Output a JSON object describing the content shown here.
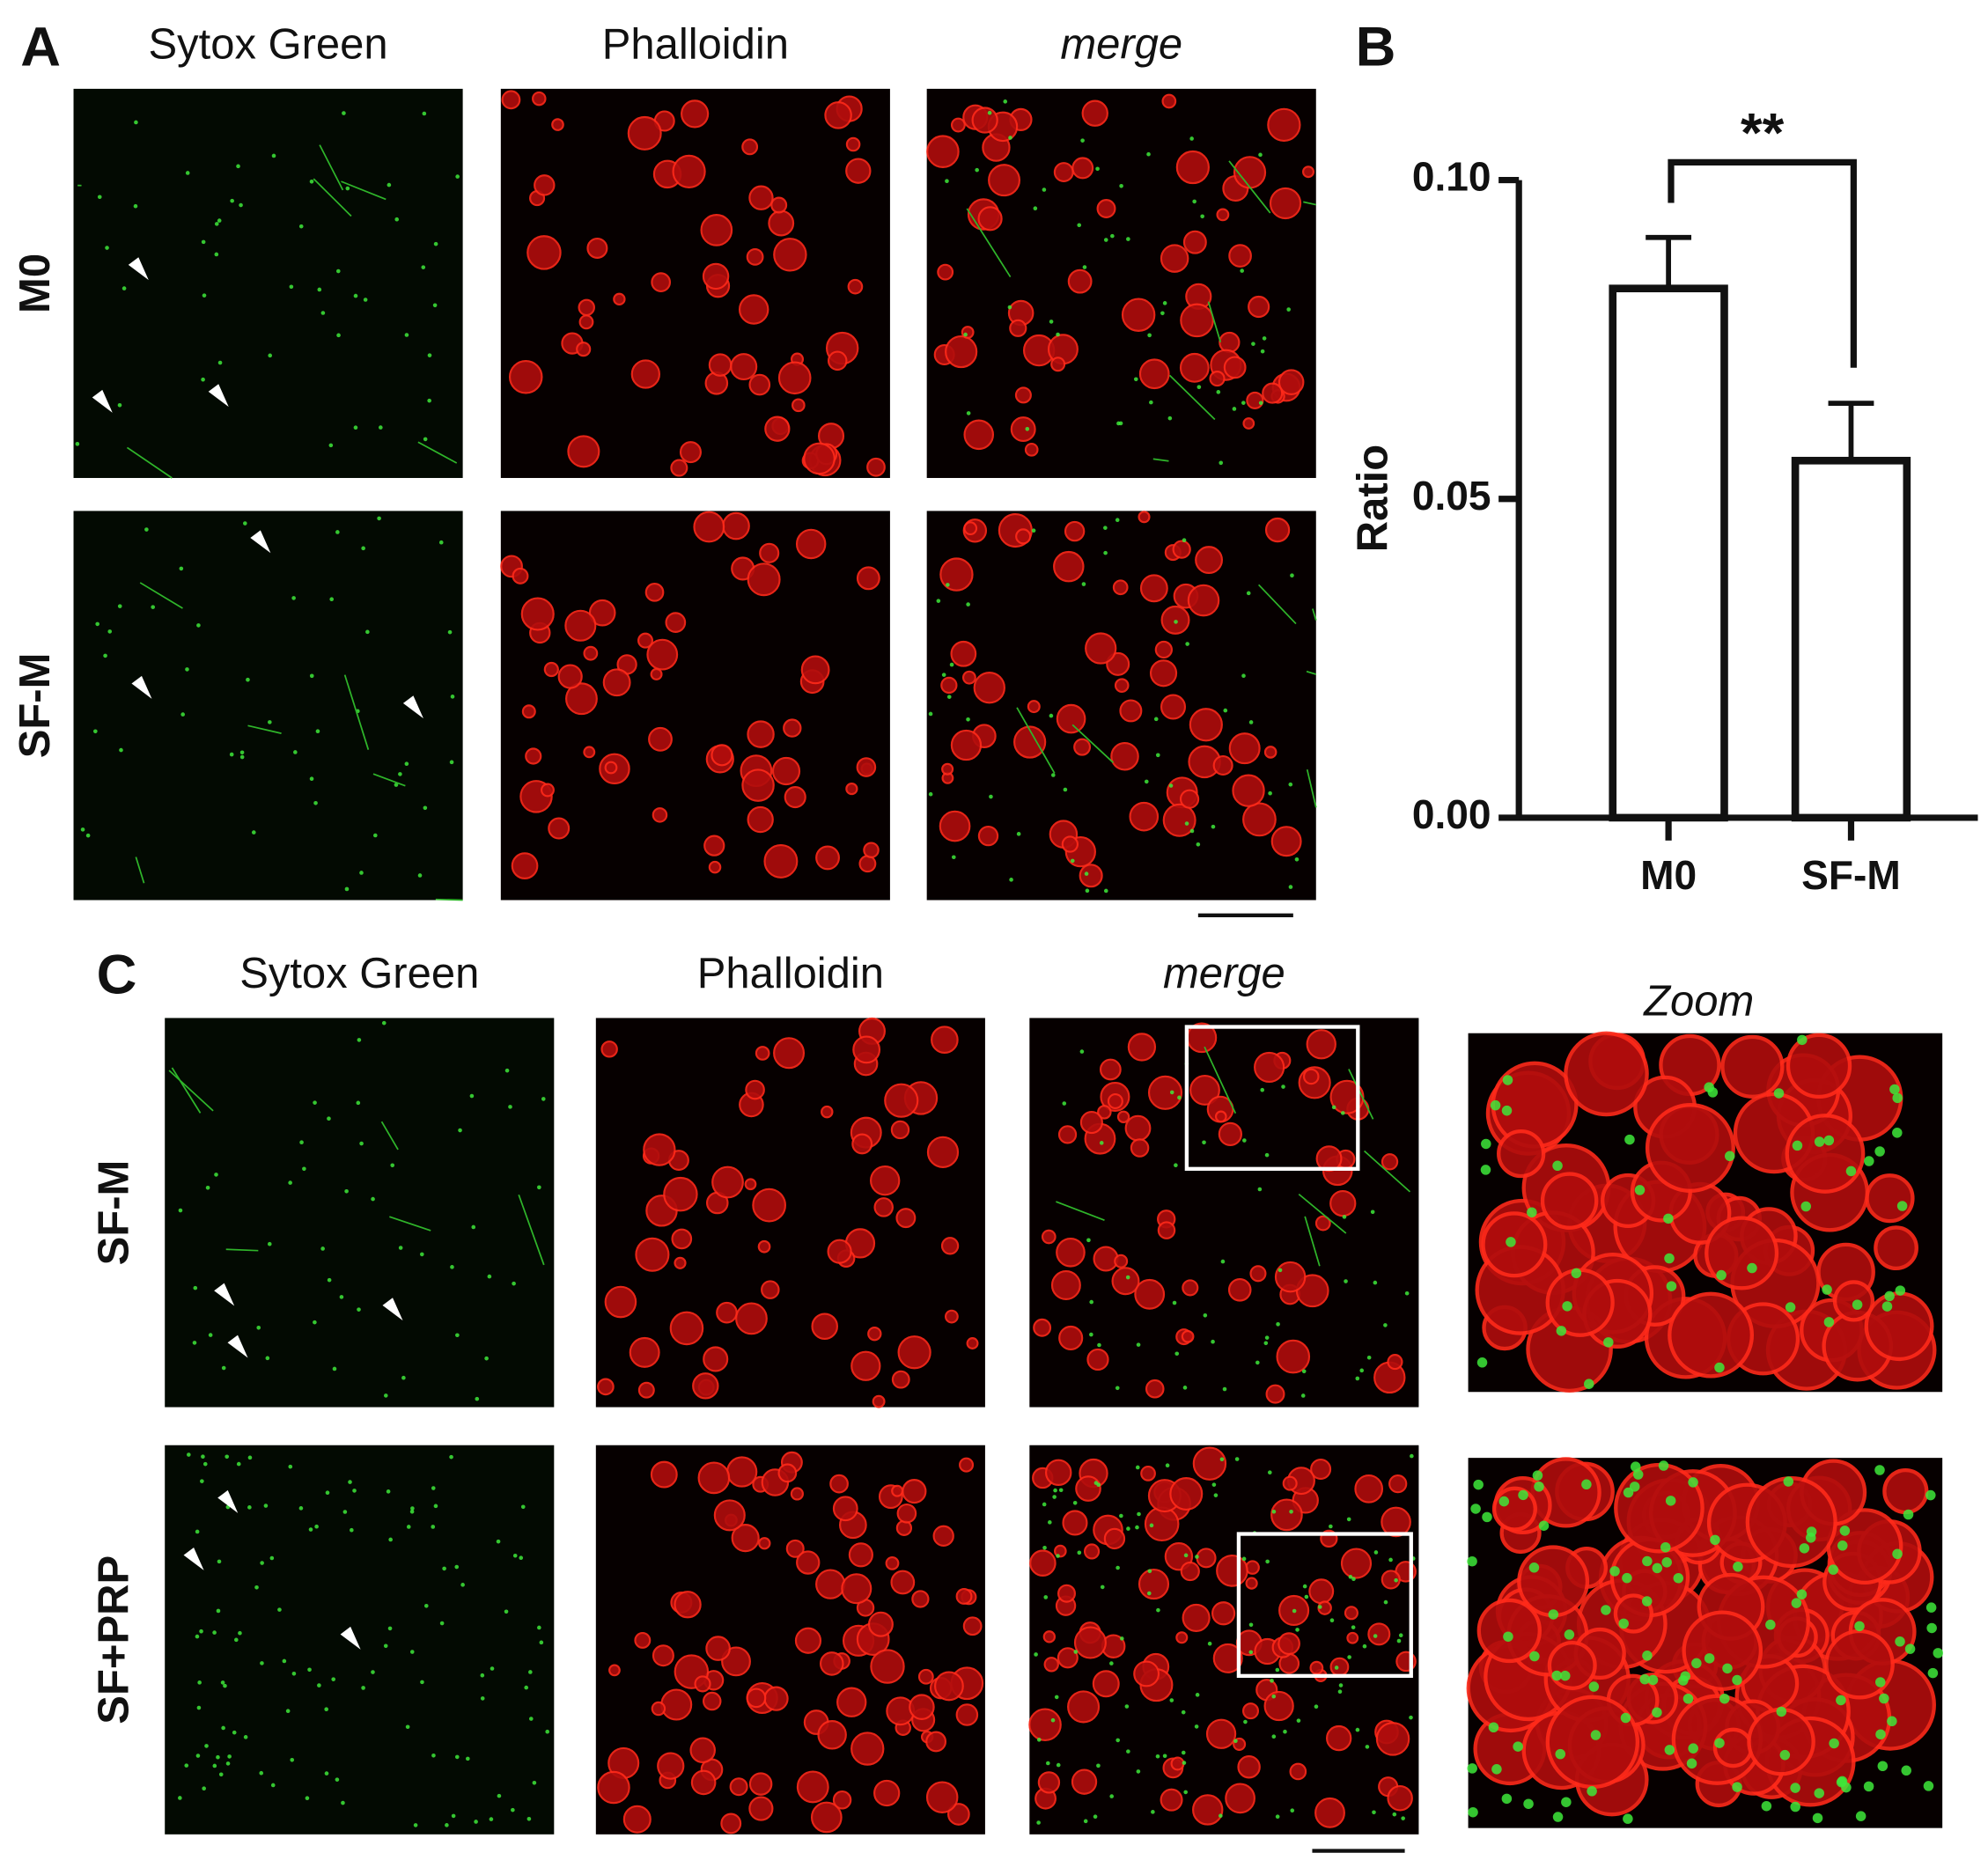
{
  "panel_a": {
    "letter": "A",
    "columns": [
      "Sytox Green",
      "Phalloidin",
      "merge"
    ],
    "rows": [
      "M0",
      "SF-M"
    ]
  },
  "chart_data": {
    "type": "bar",
    "letter": "B",
    "categories": [
      "M0",
      "SF-M"
    ],
    "values": [
      0.083,
      0.056
    ],
    "errors": [
      0.008,
      0.009
    ],
    "ylabel": "Ratio",
    "ylim": [
      0,
      0.1
    ],
    "yticks": [
      {
        "value": 0,
        "label": "0.00"
      },
      {
        "value": 0.05,
        "label": "0.05"
      },
      {
        "value": 0.1,
        "label": "0.10"
      }
    ],
    "significance": "**",
    "color": "#ffffff"
  },
  "panel_c": {
    "letter": "C",
    "columns": [
      "Sytox Green",
      "Phalloidin",
      "merge",
      "Zoom"
    ],
    "rows": [
      "SF-M",
      "SF+PRP"
    ]
  }
}
